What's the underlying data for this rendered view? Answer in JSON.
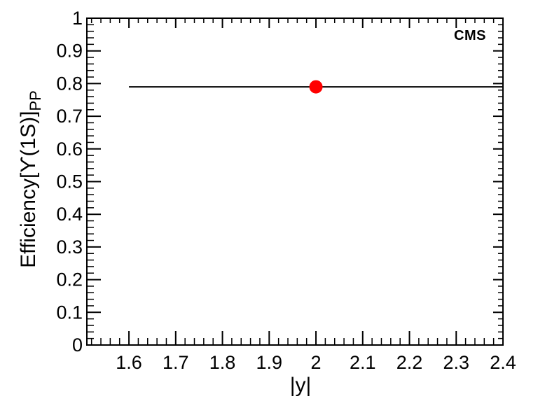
{
  "chart_data": {
    "type": "scatter",
    "title": "",
    "xlabel": "|y|",
    "ylabel": "Efficiency[ϒ(1S)]",
    "ylabel_subscript": "PP",
    "annotation": "CMS",
    "grid": false,
    "legend_position": "none",
    "xlim": [
      1.51,
      2.4
    ],
    "ylim": [
      0,
      1
    ],
    "x_major_ticks": [
      1.6,
      1.7,
      1.8,
      1.9,
      2.0,
      2.1,
      2.2,
      2.3,
      2.4
    ],
    "x_tick_labels": [
      "1.6",
      "1.7",
      "1.8",
      "1.9",
      "2",
      "2.1",
      "2.2",
      "2.3",
      "2.4"
    ],
    "x_minor_step": 0.02,
    "y_major_ticks": [
      0,
      0.1,
      0.2,
      0.3,
      0.4,
      0.5,
      0.6,
      0.7,
      0.8,
      0.9,
      1
    ],
    "y_tick_labels": [
      "0",
      "0.1",
      "0.2",
      "0.3",
      "0.4",
      "0.5",
      "0.6",
      "0.7",
      "0.8",
      "0.9",
      "1"
    ],
    "y_minor_step": 0.02,
    "series": [
      {
        "name": "Efficiency[Upsilon(1S)] PP",
        "marker": "filled-circle",
        "marker_color": "#ff0000",
        "line_color": "#000000",
        "points": [
          {
            "x": 2.0,
            "y": 0.79,
            "x_low": 1.6,
            "x_high": 2.4
          }
        ]
      }
    ]
  },
  "colors": {
    "axis": "#000000",
    "background": "#ffffff",
    "text": "#000000"
  }
}
